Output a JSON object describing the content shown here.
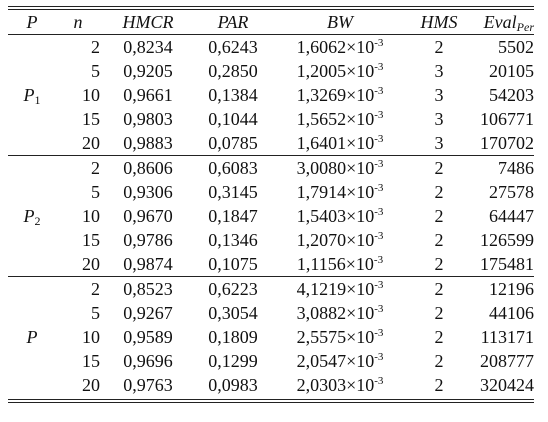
{
  "headers": {
    "p": "P",
    "n": "n",
    "hmcr": "HMCR",
    "par": "PAR",
    "bw": "BW",
    "hms": "HMS",
    "eval": "Eval",
    "eval_sub": "Per"
  },
  "groups": [
    {
      "label": "P",
      "label_sub": "1",
      "rows": [
        {
          "n": "2",
          "hmcr": "0,8234",
          "par": "0,6243",
          "bw": "1,6062×10",
          "bw_exp": "-3",
          "hms": "2",
          "eval": "5502"
        },
        {
          "n": "5",
          "hmcr": "0,9205",
          "par": "0,2850",
          "bw": "1,2005×10",
          "bw_exp": "-3",
          "hms": "3",
          "eval": "20105"
        },
        {
          "n": "10",
          "hmcr": "0,9661",
          "par": "0,1384",
          "bw": "1,3269×10",
          "bw_exp": "-3",
          "hms": "3",
          "eval": "54203"
        },
        {
          "n": "15",
          "hmcr": "0,9803",
          "par": "0,1044",
          "bw": "1,5652×10",
          "bw_exp": "-3",
          "hms": "3",
          "eval": "106771"
        },
        {
          "n": "20",
          "hmcr": "0,9883",
          "par": "0,0785",
          "bw": "1,6401×10",
          "bw_exp": "-3",
          "hms": "3",
          "eval": "170702"
        }
      ]
    },
    {
      "label": "P",
      "label_sub": "2",
      "rows": [
        {
          "n": "2",
          "hmcr": "0,8606",
          "par": "0,6083",
          "bw": "3,0080×10",
          "bw_exp": "-3",
          "hms": "2",
          "eval": "7486"
        },
        {
          "n": "5",
          "hmcr": "0,9306",
          "par": "0,3145",
          "bw": "1,7914×10",
          "bw_exp": "-3",
          "hms": "2",
          "eval": "27578"
        },
        {
          "n": "10",
          "hmcr": "0,9670",
          "par": "0,1847",
          "bw": "1,5403×10",
          "bw_exp": "-3",
          "hms": "2",
          "eval": "64447"
        },
        {
          "n": "15",
          "hmcr": "0,9786",
          "par": "0,1346",
          "bw": "1,2070×10",
          "bw_exp": "-3",
          "hms": "2",
          "eval": "126599"
        },
        {
          "n": "20",
          "hmcr": "0,9874",
          "par": "0,1075",
          "bw": "1,1156×10",
          "bw_exp": "-3",
          "hms": "2",
          "eval": "175481"
        }
      ]
    },
    {
      "label": "P",
      "label_sub": "",
      "rows": [
        {
          "n": "2",
          "hmcr": "0,8523",
          "par": "0,6223",
          "bw": "4,1219×10",
          "bw_exp": "-3",
          "hms": "2",
          "eval": "12196"
        },
        {
          "n": "5",
          "hmcr": "0,9267",
          "par": "0,3054",
          "bw": "3,0882×10",
          "bw_exp": "-3",
          "hms": "2",
          "eval": "44106"
        },
        {
          "n": "10",
          "hmcr": "0,9589",
          "par": "0,1809",
          "bw": "2,5575×10",
          "bw_exp": "-3",
          "hms": "2",
          "eval": "113171"
        },
        {
          "n": "15",
          "hmcr": "0,9696",
          "par": "0,1299",
          "bw": "2,0547×10",
          "bw_exp": "-3",
          "hms": "2",
          "eval": "208777"
        },
        {
          "n": "20",
          "hmcr": "0,9763",
          "par": "0,0983",
          "bw": "2,0303×10",
          "bw_exp": "-3",
          "hms": "2",
          "eval": "320424"
        }
      ]
    }
  ]
}
